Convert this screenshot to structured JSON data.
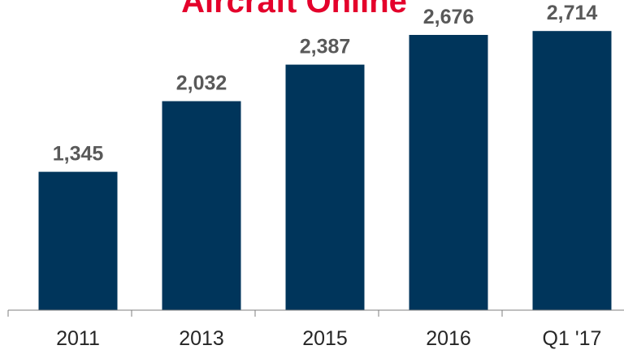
{
  "colors": {
    "bar": "#00355B",
    "title": "#E4002B",
    "value_label": "#595959",
    "tick_label": "#262626",
    "axis": "#7F7F7F"
  },
  "chart_data": {
    "type": "bar",
    "title": "Aircraft Online",
    "categories": [
      "2011",
      "2013",
      "2015",
      "2016",
      "Q1 '17"
    ],
    "values": [
      1345,
      2032,
      2387,
      2676,
      2714
    ],
    "value_labels": [
      "1,345",
      "2,032",
      "2,387",
      "2,676",
      "2,714"
    ],
    "xlabel": "",
    "ylabel": "",
    "ylim": [
      0,
      3000
    ],
    "grid": false,
    "legend": "none"
  }
}
